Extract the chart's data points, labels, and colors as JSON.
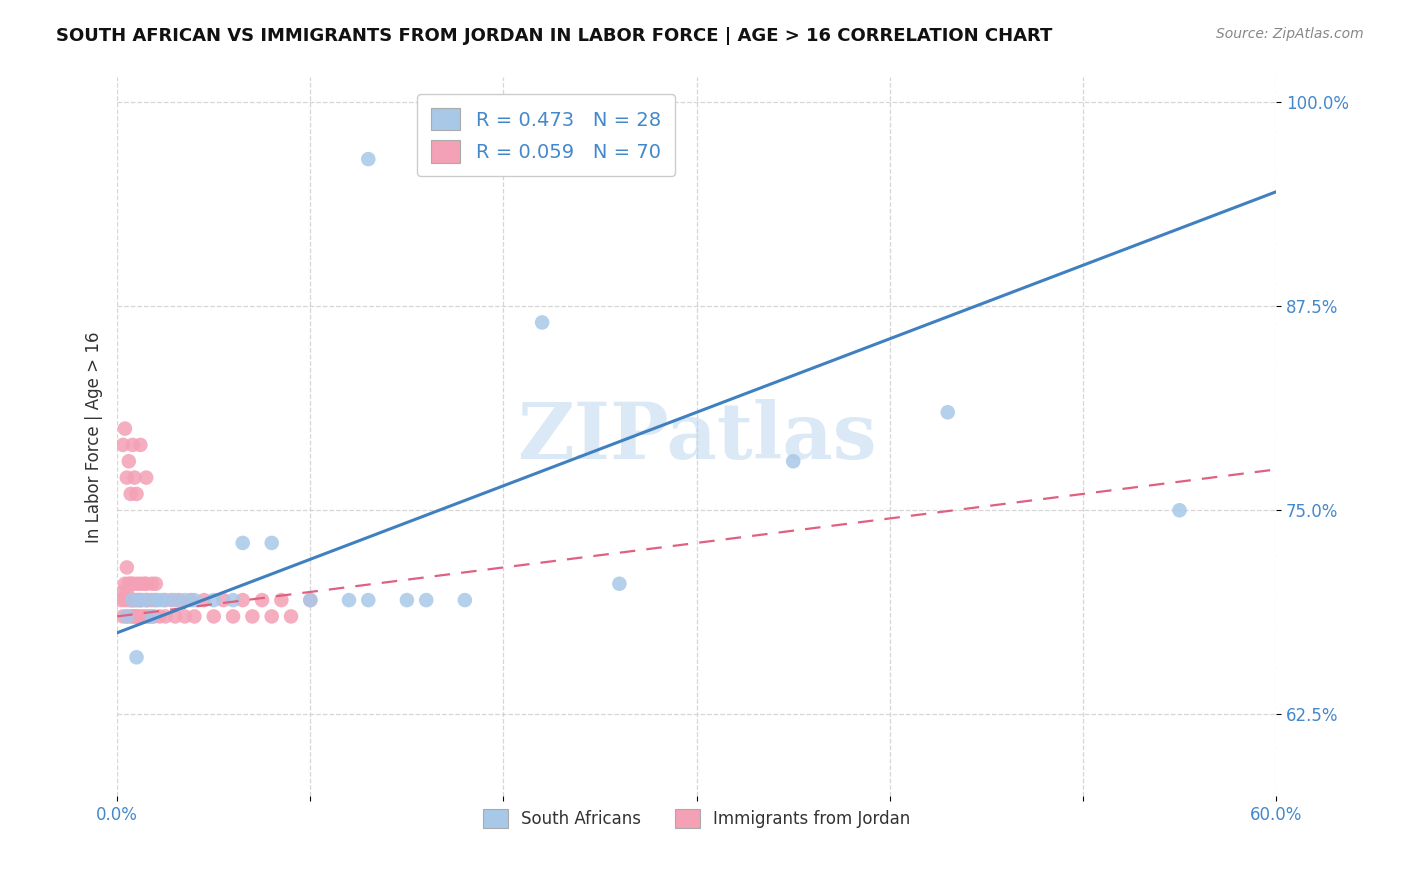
{
  "title": "SOUTH AFRICAN VS IMMIGRANTS FROM JORDAN IN LABOR FORCE | AGE > 16 CORRELATION CHART",
  "source": "Source: ZipAtlas.com",
  "ylabel": "In Labor Force | Age > 16",
  "xlim": [
    0.0,
    0.6
  ],
  "ylim": [
    0.575,
    1.015
  ],
  "xticks": [
    0.0,
    0.1,
    0.2,
    0.3,
    0.4,
    0.5,
    0.6
  ],
  "xticklabels": [
    "0.0%",
    "",
    "",
    "",
    "",
    "",
    "60.0%"
  ],
  "yticks": [
    0.625,
    0.75,
    0.875,
    1.0
  ],
  "yticklabels": [
    "62.5%",
    "75.0%",
    "87.5%",
    "100.0%"
  ],
  "blue_R": 0.473,
  "blue_N": 28,
  "pink_R": 0.059,
  "pink_N": 70,
  "blue_color": "#a8c8e8",
  "pink_color": "#f4a0b5",
  "blue_line_color": "#4080c0",
  "pink_line_color": "#e06080",
  "legend_label_blue": "South Africans",
  "legend_label_pink": "Immigrants from Jordan",
  "watermark": "ZIPatlas",
  "blue_x": [
    0.005,
    0.008,
    0.01,
    0.012,
    0.015,
    0.018,
    0.02,
    0.022,
    0.025,
    0.03,
    0.035,
    0.04,
    0.05,
    0.06,
    0.065,
    0.08,
    0.1,
    0.12,
    0.13,
    0.15,
    0.16,
    0.18,
    0.22,
    0.26,
    0.35,
    0.43,
    0.55,
    0.13
  ],
  "blue_y": [
    0.685,
    0.695,
    0.66,
    0.695,
    0.695,
    0.685,
    0.695,
    0.695,
    0.695,
    0.695,
    0.695,
    0.695,
    0.695,
    0.695,
    0.73,
    0.73,
    0.695,
    0.695,
    0.965,
    0.695,
    0.695,
    0.695,
    0.865,
    0.705,
    0.78,
    0.81,
    0.75,
    0.695
  ],
  "pink_x": [
    0.002,
    0.003,
    0.003,
    0.004,
    0.004,
    0.005,
    0.005,
    0.005,
    0.006,
    0.006,
    0.007,
    0.007,
    0.007,
    0.008,
    0.008,
    0.008,
    0.009,
    0.009,
    0.01,
    0.01,
    0.01,
    0.01,
    0.011,
    0.011,
    0.012,
    0.012,
    0.013,
    0.013,
    0.014,
    0.014,
    0.015,
    0.015,
    0.016,
    0.016,
    0.017,
    0.018,
    0.018,
    0.019,
    0.02,
    0.02,
    0.022,
    0.024,
    0.025,
    0.028,
    0.03,
    0.032,
    0.035,
    0.038,
    0.04,
    0.045,
    0.05,
    0.055,
    0.06,
    0.065,
    0.07,
    0.075,
    0.08,
    0.085,
    0.09,
    0.1,
    0.003,
    0.004,
    0.005,
    0.006,
    0.007,
    0.008,
    0.009,
    0.01,
    0.012,
    0.015
  ],
  "pink_y": [
    0.695,
    0.7,
    0.685,
    0.695,
    0.705,
    0.685,
    0.7,
    0.715,
    0.695,
    0.705,
    0.685,
    0.695,
    0.705,
    0.685,
    0.695,
    0.705,
    0.685,
    0.695,
    0.685,
    0.695,
    0.705,
    0.685,
    0.695,
    0.685,
    0.695,
    0.705,
    0.685,
    0.695,
    0.705,
    0.685,
    0.695,
    0.705,
    0.685,
    0.695,
    0.685,
    0.695,
    0.705,
    0.685,
    0.695,
    0.705,
    0.685,
    0.695,
    0.685,
    0.695,
    0.685,
    0.695,
    0.685,
    0.695,
    0.685,
    0.695,
    0.685,
    0.695,
    0.685,
    0.695,
    0.685,
    0.695,
    0.685,
    0.695,
    0.685,
    0.695,
    0.79,
    0.8,
    0.77,
    0.78,
    0.76,
    0.79,
    0.77,
    0.76,
    0.79,
    0.77
  ],
  "blue_line_x": [
    0.0,
    0.6
  ],
  "blue_line_y": [
    0.675,
    0.945
  ],
  "pink_line_x": [
    0.0,
    0.6
  ],
  "pink_line_y": [
    0.685,
    0.775
  ]
}
